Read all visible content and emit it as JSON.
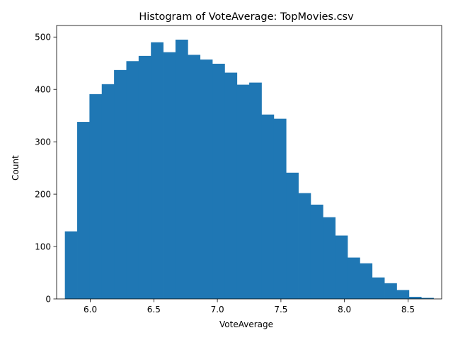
{
  "chart_data": {
    "type": "bar",
    "title": "Histogram of VoteAverage: TopMovies.csv",
    "xlabel": "VoteAverage",
    "ylabel": "Count",
    "xlim": [
      5.735,
      8.765
    ],
    "ylim": [
      0,
      522
    ],
    "xticks": [
      6.0,
      6.5,
      7.0,
      7.5,
      8.0,
      8.5
    ],
    "xtick_labels": [
      "6.0",
      "6.5",
      "7.0",
      "7.5",
      "8.0",
      "8.5"
    ],
    "yticks": [
      0,
      100,
      200,
      300,
      400,
      500
    ],
    "ytick_labels": [
      "0",
      "100",
      "200",
      "300",
      "400",
      "500"
    ],
    "bin_start": 5.8,
    "bin_width": 0.0967,
    "values": [
      129,
      338,
      391,
      410,
      437,
      454,
      464,
      490,
      471,
      495,
      466,
      457,
      449,
      432,
      409,
      413,
      352,
      344,
      241,
      202,
      180,
      156,
      121,
      79,
      68,
      41,
      30,
      17,
      4,
      2
    ],
    "bar_color": "#1f77b4",
    "grid": false,
    "legend": "none"
  }
}
